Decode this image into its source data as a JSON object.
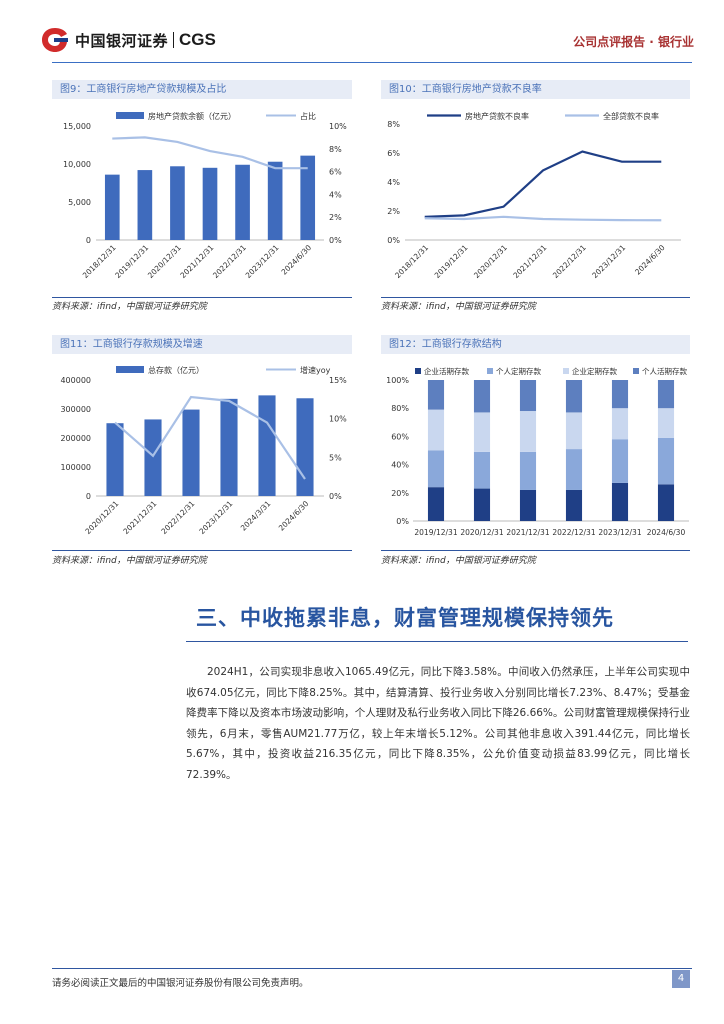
{
  "header": {
    "brand_cn": "中国银河证券",
    "brand_en": "CGS",
    "report_type": "公司点评报告 · 银行业"
  },
  "figures": [
    {
      "title": "图9：工商银行房地产贷款规模及占比",
      "source": "资料来源：ifind，中国银河证券研究院"
    },
    {
      "title": "图10：工商银行房地产贷款不良率",
      "source": "资料来源：ifind，中国银河证券研究院"
    },
    {
      "title": "图11：工商银行存款规模及增速",
      "source": "资料来源：ifind，中国银河证券研究院"
    },
    {
      "title": "图12：工商银行存款结构",
      "source": "资料来源：ifind，中国银河证券研究院"
    }
  ],
  "chart_data": [
    {
      "type": "bar",
      "categories": [
        "2018/12/31",
        "2019/12/31",
        "2020/12/31",
        "2021/12/31",
        "2022/12/31",
        "2023/12/31",
        "2024/6/30"
      ],
      "series": [
        {
          "name": "房地产贷款余额（亿元）",
          "type": "bar",
          "axis": "left",
          "values": [
            8600,
            9200,
            9700,
            9500,
            9900,
            10300,
            11100
          ]
        },
        {
          "name": "占比",
          "type": "line",
          "axis": "right",
          "values": [
            8.9,
            9.0,
            8.6,
            7.8,
            7.3,
            6.3,
            6.3
          ]
        }
      ],
      "ylim": [
        0,
        15000
      ],
      "yticks": [
        "0",
        "5,000",
        "10,000",
        "15,000"
      ],
      "y2lim": [
        0,
        10
      ],
      "y2ticks": [
        "0%",
        "2%",
        "4%",
        "6%",
        "8%",
        "10%"
      ],
      "colors": {
        "bar": "#3f6bbd",
        "line": "#a9c0e6"
      }
    },
    {
      "type": "line",
      "categories": [
        "2018/12/31",
        "2019/12/31",
        "2020/12/31",
        "2021/12/31",
        "2022/12/31",
        "2023/12/31",
        "2024/6/30"
      ],
      "series": [
        {
          "name": "房地产贷款不良率",
          "values": [
            1.6,
            1.7,
            2.3,
            4.8,
            6.1,
            5.4,
            5.4
          ]
        },
        {
          "name": "全部贷款不良率",
          "values": [
            1.5,
            1.45,
            1.6,
            1.45,
            1.4,
            1.37,
            1.36
          ]
        }
      ],
      "ylim": [
        0,
        8
      ],
      "yticks": [
        "0%",
        "2%",
        "4%",
        "6%",
        "8%"
      ],
      "colors": {
        "series0": "#1f3f86",
        "series1": "#a9c0e6"
      }
    },
    {
      "type": "bar",
      "categories": [
        "2020/12/31",
        "2021/12/31",
        "2022/12/31",
        "2023/12/31",
        "2024/3/31",
        "2024/6/30"
      ],
      "series": [
        {
          "name": "总存款（亿元）",
          "type": "bar",
          "axis": "left",
          "values": [
            251000,
            264000,
            298000,
            335000,
            347000,
            337000
          ]
        },
        {
          "name": "增速yoy",
          "type": "line",
          "axis": "right",
          "values": [
            9.5,
            5.2,
            12.8,
            12.3,
            9.5,
            2.2
          ]
        }
      ],
      "ylim": [
        0,
        400000
      ],
      "yticks": [
        "0",
        "100000",
        "200000",
        "300000",
        "400000"
      ],
      "y2lim": [
        0,
        15
      ],
      "y2ticks": [
        "0%",
        "5%",
        "10%",
        "15%"
      ],
      "colors": {
        "bar": "#3f6bbd",
        "line": "#a9c0e6"
      }
    },
    {
      "type": "bar",
      "stacked": true,
      "categories": [
        "2019/12/31",
        "2020/12/31",
        "2021/12/31",
        "2022/12/31",
        "2023/12/31",
        "2024/6/30"
      ],
      "series": [
        {
          "name": "企业活期存款",
          "values": [
            24,
            23,
            22,
            22,
            27,
            26
          ]
        },
        {
          "name": "个人定期存款",
          "values": [
            26,
            26,
            27,
            29,
            31,
            33
          ]
        },
        {
          "name": "企业定期存款",
          "values": [
            29,
            28,
            29,
            26,
            22,
            21
          ]
        },
        {
          "name": "个人活期存款",
          "values": [
            21,
            23,
            22,
            23,
            20,
            20
          ]
        }
      ],
      "ylim": [
        0,
        100
      ],
      "yticks": [
        "0%",
        "20%",
        "40%",
        "60%",
        "80%",
        "100%"
      ],
      "colors": [
        "#1f3f86",
        "#8aa8da",
        "#c9d7ef",
        "#5d7fbf"
      ]
    }
  ],
  "section": {
    "title": "三、中收拖累非息，财富管理规模保持领先",
    "paragraph": "2024H1，公司实现非息收入1065.49亿元，同比下降3.58%。中间收入仍然承压，上半年公司实现中收674.05亿元，同比下降8.25%。其中，结算清算、投行业务收入分别同比增长7.23%、8.47%；受基金降费率下降以及资本市场波动影响，个人理财及私行业务收入同比下降26.66%。公司财富管理规模保持行业领先，6月末，零售AUM21.77万亿，较上年末增长5.12%。公司其他非息收入391.44亿元，同比增长5.67%，其中，投资收益216.35亿元，同比下降8.35%，公允价值变动损益83.99亿元，同比增长72.39%。"
  },
  "footer": {
    "disclaimer": "请务必阅读正文最后的中国银河证券股份有限公司免责声明。",
    "page_number": "4"
  }
}
